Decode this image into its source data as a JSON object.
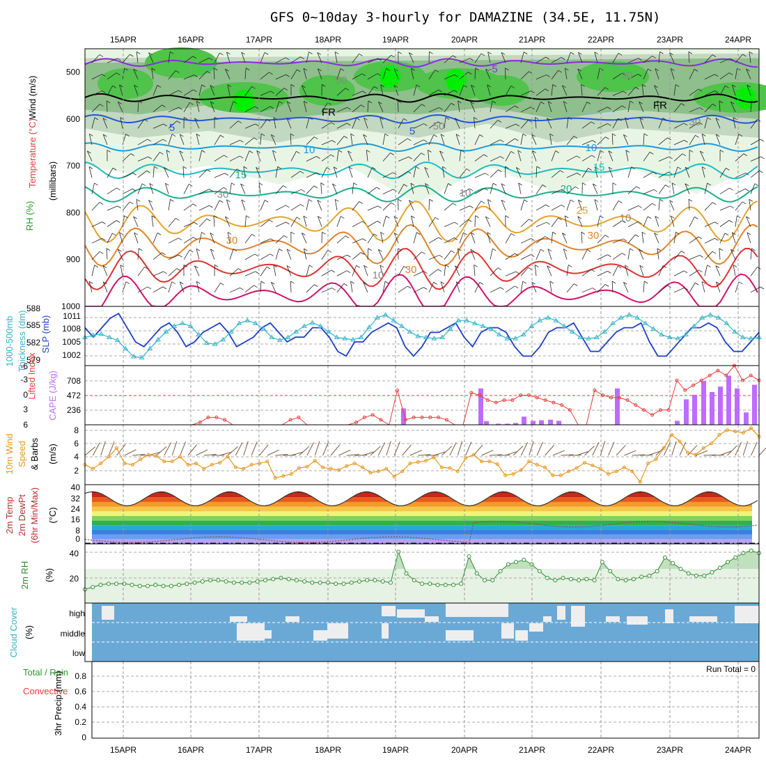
{
  "title": "GFS 0~10day 3-hourly for DAMAZINE (34.5E, 11.75N)",
  "chart_data": {
    "type": "meteogram",
    "dates": [
      "15APR",
      "16APR",
      "17APR",
      "18APR",
      "19APR",
      "20APR",
      "21APR",
      "22APR",
      "23APR",
      "24APR"
    ],
    "panels": {
      "upper_air": {
        "labels": [
          "RH (%)",
          "Temperature (°C)",
          "Wind (m/s)",
          "(millibars)"
        ],
        "yticks": [
          500,
          600,
          700,
          800,
          900,
          1000
        ],
        "ylim": [
          450,
          1000
        ],
        "contour_labels": [
          "-5",
          "FR",
          "5",
          "10",
          "15",
          "20",
          "25",
          "30",
          "30",
          "FR",
          "5",
          "10",
          "15",
          "30",
          "10",
          "30",
          "50",
          "50",
          "30",
          "30",
          "10",
          "10"
        ]
      },
      "thickness_slp": {
        "labels": [
          "1000-500mb",
          "Thickness (dm)",
          "SLP (mb)"
        ],
        "thickness_ticks": [
          "588",
          "585",
          "582",
          "579"
        ],
        "slp_ticks": [
          "1011",
          "1008",
          "1005",
          "1002"
        ],
        "slp": [
          1008,
          1006,
          1008,
          1010,
          1011,
          1008,
          1005,
          1004,
          1006,
          1008,
          1009,
          1007,
          1004,
          1005,
          1007,
          1008,
          1009,
          1007,
          1004,
          1005,
          1006,
          1008,
          1009,
          1007,
          1005,
          1006,
          1006,
          1008,
          1008,
          1006,
          1003,
          1002,
          1005,
          1005,
          1007,
          1008,
          1009,
          1008,
          1004,
          1002,
          1004,
          1007,
          1007,
          1008,
          1009,
          1006,
          1004,
          1007,
          1008,
          1008,
          1007,
          1004,
          1002,
          1002,
          1004,
          1007,
          1008,
          1008,
          1009,
          1006,
          1003,
          1003,
          1005,
          1007,
          1008,
          1008,
          1009,
          1005,
          1002,
          1002,
          1004,
          1006,
          1008,
          1008,
          1009,
          1008,
          1005,
          1003,
          1003,
          1005,
          1007
        ],
        "thickness": [
          583,
          583.4,
          583.6,
          583,
          582.5,
          581,
          579.6,
          579.4,
          581,
          582.6,
          584,
          585,
          585.5,
          585,
          583.5,
          582,
          581.8,
          582.6,
          584,
          585.5,
          586,
          585.5,
          584.5,
          583,
          582.5,
          583,
          584,
          585,
          585.6,
          585,
          584,
          583,
          582.8,
          582.6,
          583,
          584.8,
          586.5,
          587,
          586,
          585,
          584,
          583.2,
          583,
          582.8,
          583,
          584.5,
          586,
          586,
          585.5,
          585,
          584.5,
          583.5,
          582.8,
          582.8,
          583.5,
          585,
          586,
          586.5,
          586,
          585,
          584,
          583,
          582.8,
          583,
          584,
          585.5,
          586.5,
          587,
          586.5,
          585.5,
          584.5,
          583.5,
          583,
          582.8,
          583.5,
          585,
          586.5,
          587,
          586.5,
          585.5,
          584,
          583,
          582.8,
          583
        ]
      },
      "lifted_cape": {
        "labels": [
          "Lifted Index",
          "CAPE (J/kg)"
        ],
        "li_ticks": [
          "-6",
          "-3",
          "0",
          "3",
          "6"
        ],
        "cape_ticks": [
          "708",
          "472",
          "236"
        ],
        "lifted_index": [
          6,
          6,
          6,
          6,
          6,
          6,
          6,
          6,
          6,
          6,
          6,
          6,
          6,
          6,
          5.5,
          4.5,
          4.5,
          5,
          6,
          6,
          6,
          6,
          6,
          6,
          6,
          5,
          4.5,
          6,
          6,
          6,
          6,
          6,
          6,
          5.5,
          4.5,
          4,
          5,
          6,
          -1,
          5,
          4.5,
          4.5,
          4.5,
          4.5,
          5,
          6,
          6,
          -0.5,
          0,
          1,
          1.5,
          1,
          1,
          0,
          0,
          0.5,
          1,
          1.5,
          2,
          3,
          6,
          6,
          -1,
          0,
          0.5,
          0.5,
          1,
          2,
          3,
          4,
          3,
          3,
          -3,
          -1,
          -2,
          -3,
          -4,
          -5,
          -4,
          -6,
          -3,
          -4,
          -3
        ]
      },
      "cape": {
        "values": [
          0,
          0,
          0,
          0,
          0,
          0,
          0,
          0,
          0,
          0,
          0,
          0,
          0,
          0,
          0,
          0,
          0,
          0,
          0,
          0,
          0,
          0,
          0,
          0,
          0,
          0,
          0,
          0,
          0,
          0,
          0,
          0,
          0,
          0,
          0,
          0,
          0,
          0,
          0,
          140,
          0,
          0,
          0,
          0,
          0,
          0,
          0,
          0,
          0,
          0,
          0,
          0,
          0,
          0,
          0,
          0,
          0,
          0,
          0,
          0,
          0,
          0,
          0,
          0,
          0,
          0,
          0,
          0,
          0,
          0,
          0,
          0,
          0,
          0,
          0,
          0,
          0,
          0,
          0,
          0,
          0,
          0,
          0,
          0,
          0,
          0,
          0,
          0,
          0,
          0,
          0,
          0,
          0,
          0,
          0,
          0,
          0,
          0,
          0,
          0,
          0,
          0,
          0,
          0,
          0,
          0,
          0,
          0,
          0,
          0,
          0,
          0,
          0,
          0,
          0,
          0,
          0,
          0,
          0,
          0
        ]
      },
      "wind10m": {
        "labels": [
          "10m Wind",
          "Speed",
          "& Barbs",
          "(m/s)"
        ],
        "yticks": [
          "8",
          "6",
          "4",
          "2"
        ],
        "speed": [
          3,
          2.4,
          3.2,
          4.2,
          5.5,
          3.2,
          3.0,
          3.8,
          4.5,
          4.3,
          3.5,
          3.5,
          4.2,
          3.0,
          3.2,
          2.4,
          3.0,
          3.3,
          4.2,
          2.6,
          2.4,
          3.0,
          3.2,
          3.5,
          1.0,
          1.3,
          1.6,
          2.5,
          2.7,
          3.6,
          2.6,
          2.4,
          2.2,
          2.8,
          3.2,
          2.6,
          1.8,
          2.0,
          2.4,
          1.2,
          2.0,
          3.2,
          3.4,
          3.6,
          4.1,
          2.6,
          2.5,
          2.0,
          4.0,
          4.5,
          3.5,
          3.5,
          3.1,
          1.4,
          1.6,
          2.2,
          3.5,
          3.0,
          2.6,
          1.4,
          1.4,
          2.0,
          2.5,
          3.3,
          2.9,
          2.4,
          1.6,
          2.0,
          2.6,
          2.0,
          0.4,
          3.2,
          3.8,
          5.5,
          7.5,
          6.5,
          4.8,
          4.5,
          5.5,
          6.2,
          7.5,
          8.2,
          8.0,
          7.8,
          8.5,
          7.2
        ]
      },
      "temp": {
        "labels": [
          "2m Temp",
          "2m DewPt",
          "(6hr Min/Max)",
          "(°C)"
        ],
        "yticks": [
          "40",
          "32",
          "24",
          "16",
          "8",
          "0"
        ]
      },
      "rh2m": {
        "labels": [
          "2m RH",
          "(%)"
        ],
        "yticks": [
          "40",
          "20"
        ],
        "values": [
          12,
          14,
          16,
          17,
          17,
          17,
          16,
          15,
          15,
          16,
          15,
          15,
          16,
          17,
          18,
          19,
          20,
          20,
          19,
          18,
          18,
          18,
          19,
          20,
          21,
          22,
          21,
          20,
          19,
          18,
          18,
          18,
          17,
          17,
          18,
          19,
          20,
          20,
          19,
          18,
          45,
          26,
          20,
          17,
          17,
          16,
          16,
          16,
          17,
          41,
          26,
          20,
          20,
          28,
          34,
          36,
          38,
          34,
          28,
          22,
          20,
          22,
          21,
          20,
          21,
          20,
          36,
          28,
          21,
          20,
          21,
          23,
          24,
          28,
          40,
          35,
          30,
          26,
          24,
          24,
          27,
          31,
          36,
          40,
          44,
          46,
          44
        ]
      },
      "cloud": {
        "labels": [
          "Cloud Cover",
          "(%)"
        ],
        "levels": [
          "high",
          "middle",
          "low"
        ]
      },
      "precip": {
        "labels": [
          "Total / Rain",
          "Convective",
          "3hr Precip (mm)"
        ],
        "yticks": [
          "0.8",
          "0.6",
          "0.4",
          "0.2",
          "0"
        ],
        "run_total_label": "Run Total = 0",
        "values": []
      }
    },
    "colors": {
      "rh_light": "#e8f5e4",
      "rh_mid": "#a9d9a0",
      "rh_high": "#4fc34a",
      "rh_max": "#00ee00",
      "slp": "#1c3dc8",
      "thickness": "#33b4c8",
      "cape": "#bf6bff",
      "lifted": "#e83a3a",
      "wind": "#e89620",
      "temp_bg_top": "#8b0000",
      "dewpt": "#8b4a4a",
      "rh2m": "#2e8b2e",
      "cloud": "#6aa9d6",
      "cloud_gap": "#eeeeee"
    }
  }
}
